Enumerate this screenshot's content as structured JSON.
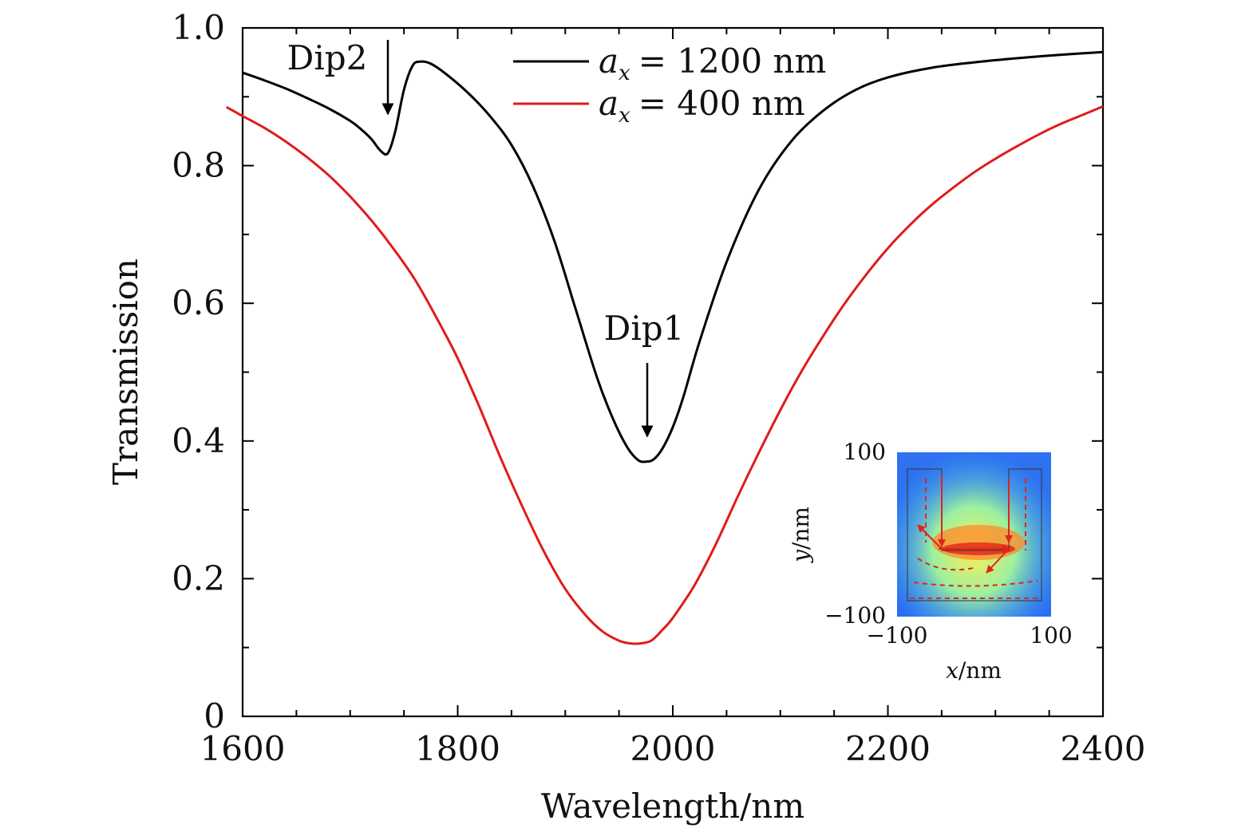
{
  "chart_data": {
    "type": "line",
    "xlabel": "Wavelength/nm",
    "ylabel": "Transmission",
    "xlim": [
      1600,
      2400
    ],
    "ylim": [
      0,
      1.0
    ],
    "x_ticks": [
      1600,
      1800,
      2000,
      2200,
      2400
    ],
    "x_tick_labels": [
      "1600",
      "1800",
      "2000",
      "2200",
      "2400"
    ],
    "y_ticks": [
      0,
      0.2,
      0.4,
      0.6,
      0.8,
      1.0
    ],
    "y_tick_labels": [
      "0",
      "0.2",
      "0.4",
      "0.6",
      "0.8",
      "1.0"
    ],
    "legend_position": "top-center",
    "series": [
      {
        "name": "a_x = 1200 nm",
        "legend_var": "a",
        "legend_sub": "x",
        "legend_rest": "= 1200 nm",
        "color": "#000000",
        "x": [
          1600,
          1620,
          1640,
          1660,
          1680,
          1700,
          1710,
          1720,
          1728,
          1735,
          1742,
          1750,
          1758,
          1765,
          1775,
          1790,
          1810,
          1830,
          1850,
          1870,
          1890,
          1910,
          1930,
          1945,
          1958,
          1968,
          1975,
          1982,
          1990,
          2000,
          2010,
          2025,
          2050,
          2080,
          2110,
          2140,
          2170,
          2200,
          2240,
          2280,
          2320,
          2360,
          2400
        ],
        "y": [
          0.935,
          0.924,
          0.912,
          0.898,
          0.883,
          0.865,
          0.853,
          0.838,
          0.822,
          0.818,
          0.85,
          0.91,
          0.945,
          0.951,
          0.948,
          0.932,
          0.905,
          0.872,
          0.83,
          0.77,
          0.69,
          0.59,
          0.49,
          0.43,
          0.39,
          0.372,
          0.37,
          0.373,
          0.388,
          0.42,
          0.465,
          0.545,
          0.66,
          0.765,
          0.835,
          0.88,
          0.91,
          0.928,
          0.942,
          0.95,
          0.956,
          0.961,
          0.965
        ]
      },
      {
        "name": "a_x = 400 nm",
        "legend_var": "a",
        "legend_sub": "x",
        "legend_rest": "= 400 nm",
        "color": "#e01b1b",
        "x": [
          1585,
          1600,
          1620,
          1640,
          1660,
          1680,
          1700,
          1720,
          1740,
          1760,
          1780,
          1800,
          1820,
          1840,
          1860,
          1880,
          1900,
          1920,
          1935,
          1950,
          1960,
          1970,
          1980,
          1990,
          2000,
          2020,
          2040,
          2060,
          2080,
          2100,
          2120,
          2140,
          2160,
          2180,
          2200,
          2220,
          2240,
          2260,
          2280,
          2300,
          2320,
          2340,
          2360,
          2380,
          2400
        ],
        "y": [
          0.885,
          0.872,
          0.855,
          0.835,
          0.812,
          0.786,
          0.755,
          0.72,
          0.68,
          0.635,
          0.58,
          0.52,
          0.45,
          0.375,
          0.305,
          0.24,
          0.185,
          0.145,
          0.123,
          0.11,
          0.106,
          0.106,
          0.11,
          0.125,
          0.143,
          0.19,
          0.25,
          0.318,
          0.383,
          0.445,
          0.502,
          0.553,
          0.6,
          0.642,
          0.68,
          0.713,
          0.742,
          0.767,
          0.79,
          0.81,
          0.828,
          0.845,
          0.86,
          0.873,
          0.886
        ]
      }
    ],
    "annotations": [
      {
        "text": "Dip2",
        "target_x": 1735,
        "target_y": 0.818
      },
      {
        "text": "Dip1",
        "target_x": 1975,
        "target_y": 0.37
      }
    ],
    "inset": {
      "description": "field map",
      "xlabel_var": "x",
      "xlabel_rest": "/nm",
      "ylabel_var": "y",
      "ylabel_rest": "/nm",
      "x_tick_labels": [
        "−100",
        "100"
      ],
      "y_tick_labels": [
        "−100",
        "100"
      ]
    }
  }
}
